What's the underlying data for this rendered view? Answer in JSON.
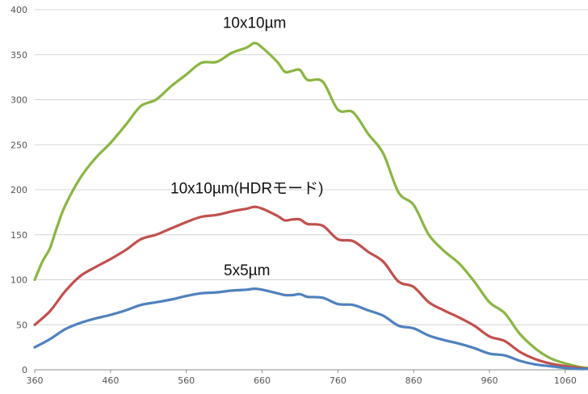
{
  "chart_data": {
    "type": "line",
    "title": "",
    "xlabel": "",
    "ylabel": "",
    "xlim": [
      360,
      1090
    ],
    "ylim": [
      0,
      400
    ],
    "x_ticks": [
      "360",
      "460",
      "560",
      "660",
      "760",
      "860",
      "960",
      "1060"
    ],
    "y_ticks": [
      "0",
      "50",
      "100",
      "150",
      "200",
      "250",
      "300",
      "350",
      "400"
    ],
    "grid": "horizontal",
    "legend": "none",
    "series": [
      {
        "name": "10x10µm",
        "color": "#8ab543",
        "points": [
          [
            360,
            100
          ],
          [
            370,
            120
          ],
          [
            380,
            135
          ],
          [
            390,
            160
          ],
          [
            400,
            182
          ],
          [
            420,
            213
          ],
          [
            440,
            235
          ],
          [
            460,
            252
          ],
          [
            480,
            272
          ],
          [
            500,
            293
          ],
          [
            520,
            300
          ],
          [
            540,
            315
          ],
          [
            560,
            328
          ],
          [
            580,
            341
          ],
          [
            600,
            342
          ],
          [
            620,
            352
          ],
          [
            640,
            358
          ],
          [
            650,
            363
          ],
          [
            660,
            358
          ],
          [
            680,
            342
          ],
          [
            690,
            331
          ],
          [
            700,
            332
          ],
          [
            710,
            333
          ],
          [
            720,
            322
          ],
          [
            740,
            320
          ],
          [
            760,
            289
          ],
          [
            780,
            286
          ],
          [
            800,
            262
          ],
          [
            820,
            240
          ],
          [
            840,
            197
          ],
          [
            860,
            183
          ],
          [
            880,
            150
          ],
          [
            900,
            132
          ],
          [
            920,
            118
          ],
          [
            940,
            98
          ],
          [
            960,
            75
          ],
          [
            980,
            63
          ],
          [
            1000,
            40
          ],
          [
            1020,
            24
          ],
          [
            1040,
            13
          ],
          [
            1060,
            7
          ],
          [
            1080,
            3
          ],
          [
            1090,
            2
          ]
        ]
      },
      {
        "name": "10x10µm(HDRモード)",
        "color": "#c0504d",
        "points": [
          [
            360,
            50
          ],
          [
            380,
            65
          ],
          [
            400,
            87
          ],
          [
            420,
            104
          ],
          [
            440,
            114
          ],
          [
            460,
            123
          ],
          [
            480,
            133
          ],
          [
            500,
            145
          ],
          [
            520,
            150
          ],
          [
            540,
            157
          ],
          [
            560,
            164
          ],
          [
            580,
            170
          ],
          [
            600,
            172
          ],
          [
            620,
            176
          ],
          [
            640,
            179
          ],
          [
            650,
            181
          ],
          [
            660,
            179
          ],
          [
            680,
            171
          ],
          [
            690,
            166
          ],
          [
            700,
            167
          ],
          [
            710,
            167
          ],
          [
            720,
            162
          ],
          [
            740,
            160
          ],
          [
            760,
            145
          ],
          [
            780,
            143
          ],
          [
            800,
            131
          ],
          [
            820,
            120
          ],
          [
            840,
            98
          ],
          [
            860,
            92
          ],
          [
            880,
            75
          ],
          [
            900,
            66
          ],
          [
            920,
            58
          ],
          [
            940,
            49
          ],
          [
            960,
            37
          ],
          [
            980,
            32
          ],
          [
            1000,
            20
          ],
          [
            1020,
            12
          ],
          [
            1040,
            7
          ],
          [
            1060,
            4
          ],
          [
            1080,
            2
          ],
          [
            1090,
            1
          ]
        ]
      },
      {
        "name": "5x5µm",
        "color": "#4f81bd",
        "points": [
          [
            360,
            25
          ],
          [
            380,
            34
          ],
          [
            400,
            45
          ],
          [
            420,
            52
          ],
          [
            440,
            57
          ],
          [
            460,
            61
          ],
          [
            480,
            66
          ],
          [
            500,
            72
          ],
          [
            520,
            75
          ],
          [
            540,
            78
          ],
          [
            560,
            82
          ],
          [
            580,
            85
          ],
          [
            600,
            86
          ],
          [
            620,
            88
          ],
          [
            640,
            89
          ],
          [
            650,
            90
          ],
          [
            660,
            89
          ],
          [
            680,
            85
          ],
          [
            690,
            83
          ],
          [
            700,
            83
          ],
          [
            710,
            84
          ],
          [
            720,
            81
          ],
          [
            740,
            80
          ],
          [
            760,
            73
          ],
          [
            780,
            72
          ],
          [
            800,
            66
          ],
          [
            820,
            60
          ],
          [
            840,
            49
          ],
          [
            860,
            46
          ],
          [
            880,
            38
          ],
          [
            900,
            33
          ],
          [
            920,
            29
          ],
          [
            940,
            24
          ],
          [
            960,
            18
          ],
          [
            980,
            16
          ],
          [
            1000,
            10
          ],
          [
            1020,
            6
          ],
          [
            1040,
            4
          ],
          [
            1060,
            2
          ],
          [
            1080,
            1
          ],
          [
            1090,
            1
          ]
        ]
      }
    ],
    "annotations": [
      {
        "text": "10x10µm",
        "x": 650,
        "y": 380
      },
      {
        "text": "10x10µm(HDRモード)",
        "x": 640,
        "y": 196
      },
      {
        "text": "5x5µm",
        "x": 640,
        "y": 105
      }
    ]
  }
}
